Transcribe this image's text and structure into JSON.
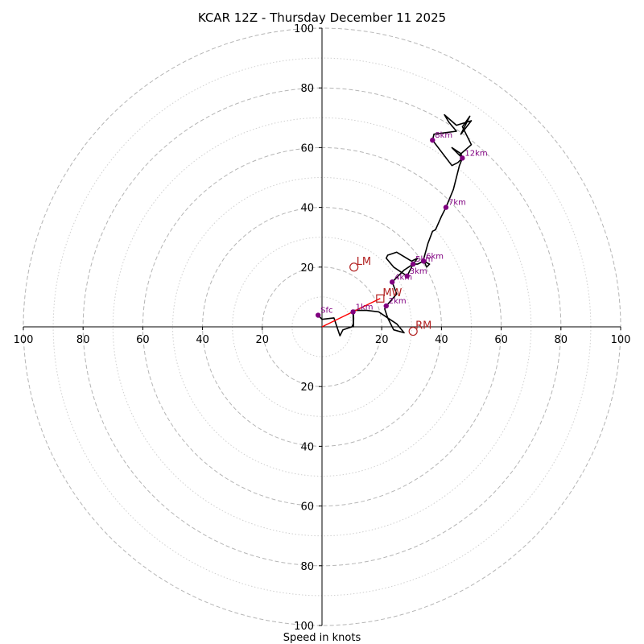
{
  "chart_data": {
    "type": "hodograph",
    "title": "KCAR 12Z - Thursday December 11 2025",
    "xlabel": "Speed in knots",
    "range": [
      -100,
      100
    ],
    "ring_major": [
      20,
      40,
      60,
      80,
      100
    ],
    "ring_minor": [
      10,
      30,
      50,
      70,
      90
    ],
    "x_ticks": [
      {
        "value": -100,
        "label": "100"
      },
      {
        "value": -80,
        "label": "80"
      },
      {
        "value": -60,
        "label": "60"
      },
      {
        "value": -40,
        "label": "40"
      },
      {
        "value": -20,
        "label": "20"
      },
      {
        "value": 20,
        "label": "20"
      },
      {
        "value": 40,
        "label": "40"
      },
      {
        "value": 60,
        "label": "60"
      },
      {
        "value": 80,
        "label": "80"
      },
      {
        "value": 100,
        "label": "100"
      }
    ],
    "y_ticks": [
      {
        "value": 100,
        "label": "100"
      },
      {
        "value": 80,
        "label": "80"
      },
      {
        "value": 60,
        "label": "60"
      },
      {
        "value": 40,
        "label": "40"
      },
      {
        "value": 20,
        "label": "20"
      },
      {
        "value": -20,
        "label": "20"
      },
      {
        "value": -40,
        "label": "40"
      },
      {
        "value": -60,
        "label": "60"
      },
      {
        "value": -80,
        "label": "80"
      },
      {
        "value": -100,
        "label": "100"
      }
    ],
    "trace": [
      [
        -1.3,
        3.9
      ],
      [
        0,
        2.5
      ],
      [
        4,
        3
      ],
      [
        6,
        -3
      ],
      [
        7,
        -1
      ],
      [
        10,
        0
      ],
      [
        10.5,
        1
      ],
      [
        10.4,
        5
      ],
      [
        10.5,
        0
      ],
      [
        10.6,
        3
      ],
      [
        10.4,
        5.5
      ],
      [
        15,
        5.5
      ],
      [
        19,
        5
      ],
      [
        22,
        3
      ],
      [
        24,
        -1
      ],
      [
        27.5,
        -2
      ],
      [
        25,
        1
      ],
      [
        22,
        3
      ],
      [
        21,
        6
      ],
      [
        21.5,
        7
      ],
      [
        25,
        11
      ],
      [
        23.5,
        15
      ],
      [
        27.5,
        19
      ],
      [
        30.5,
        21
      ],
      [
        32,
        23
      ],
      [
        30,
        22
      ],
      [
        25,
        25
      ],
      [
        22,
        24
      ],
      [
        21.5,
        23
      ],
      [
        24,
        20
      ],
      [
        28.5,
        17
      ],
      [
        30.5,
        21
      ],
      [
        32,
        21
      ],
      [
        34,
        22
      ],
      [
        36,
        21
      ],
      [
        35,
        20
      ],
      [
        34,
        22.5
      ],
      [
        35.5,
        28
      ],
      [
        37,
        32
      ],
      [
        38,
        32.5
      ],
      [
        40,
        37
      ],
      [
        41.5,
        40
      ],
      [
        44,
        46
      ],
      [
        46,
        54
      ],
      [
        47,
        56.5
      ],
      [
        43.5,
        60
      ],
      [
        46.5,
        58
      ],
      [
        47,
        56.5
      ],
      [
        45.5,
        55
      ],
      [
        43.5,
        54
      ],
      [
        37,
        62.5
      ],
      [
        37.5,
        64.5
      ],
      [
        45,
        65.5
      ],
      [
        42.5,
        68.5
      ],
      [
        41,
        71
      ],
      [
        45,
        67.5
      ],
      [
        50,
        69
      ],
      [
        46.5,
        64.5
      ],
      [
        49.5,
        70.5
      ],
      [
        47,
        67
      ],
      [
        50,
        61
      ],
      [
        46,
        57.5
      ]
    ],
    "height_markers": [
      {
        "label": "Sfc",
        "u": -1.3,
        "v": 3.9
      },
      {
        "label": "1km",
        "u": 10.4,
        "v": 5
      },
      {
        "label": "2km",
        "u": 21.5,
        "v": 7
      },
      {
        "label": "3km",
        "u": 28.5,
        "v": 17
      },
      {
        "label": "4km",
        "u": 23.5,
        "v": 15
      },
      {
        "label": "5km",
        "u": 30.5,
        "v": 21
      },
      {
        "label": "6km",
        "u": 34,
        "v": 22
      },
      {
        "label": "7km",
        "u": 41.5,
        "v": 40
      },
      {
        "label": "8km",
        "u": 37,
        "v": 62.5
      },
      {
        "label": "12km",
        "u": 47,
        "v": 56.5
      }
    ],
    "motions": [
      {
        "label": "MW",
        "u": 19.5,
        "v": 9.5,
        "marker": "square"
      },
      {
        "label": "LM",
        "u": 10.7,
        "v": 20,
        "marker": "circle"
      },
      {
        "label": "RM",
        "u": 30.5,
        "v": -1.5,
        "marker": "circle"
      }
    ],
    "shear_vector": {
      "from": [
        0,
        0
      ],
      "to": [
        19.5,
        9.5
      ]
    },
    "colors": {
      "grid": "#b5b5b5",
      "trace": "#000000",
      "marker": "#800080",
      "motion": "#b22222",
      "shear": "#ff0000"
    }
  }
}
